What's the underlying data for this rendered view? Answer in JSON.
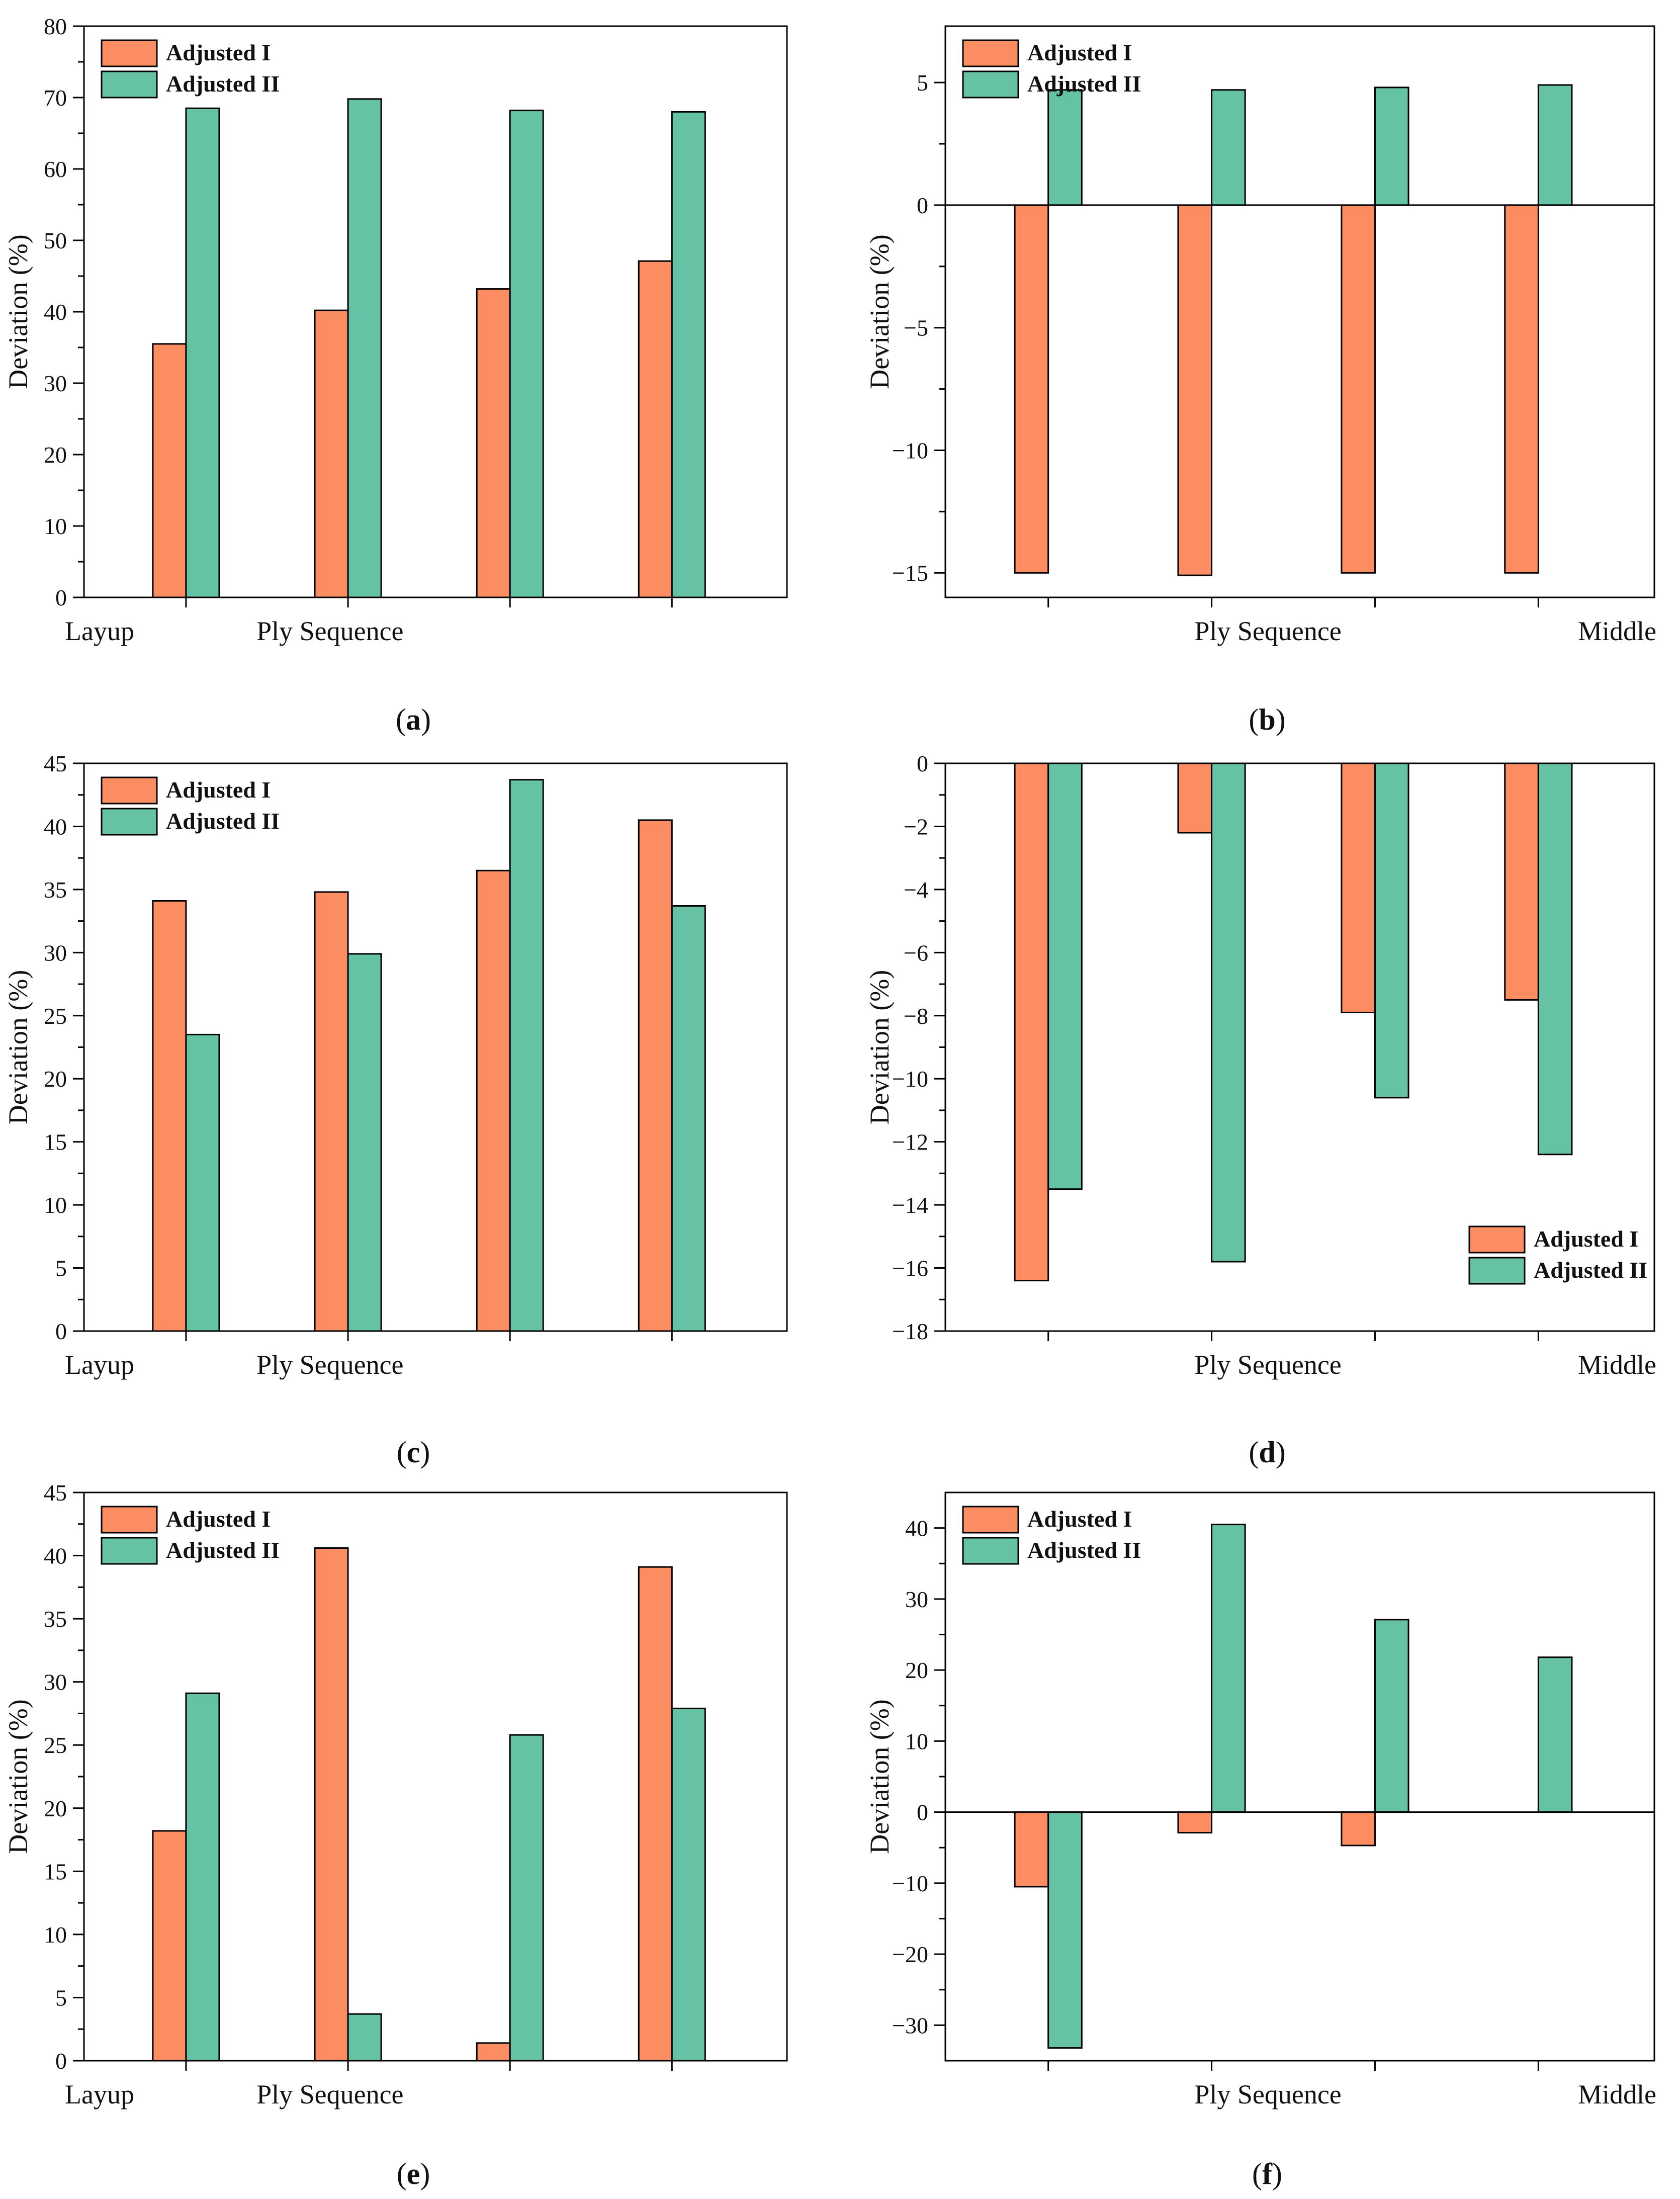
{
  "colors": {
    "adjusted_1": "#FC8D62",
    "adjusted_2": "#66C2A5",
    "axis": "#000000"
  },
  "legend": {
    "series_1": "Adjusted I",
    "series_2": "Adjusted II"
  },
  "chart_data": [
    {
      "id": "a",
      "type": "bar",
      "caption_letter": "a",
      "ylabel": "Deviation (%)",
      "xlabel": "Ply Sequence",
      "x_labels": {
        "left": "Layup",
        "right": ""
      },
      "ylim": [
        0,
        80
      ],
      "yticks": [
        0,
        10,
        20,
        30,
        40,
        50,
        60,
        70,
        80
      ],
      "legend_position": "top-left",
      "series": [
        {
          "name": "Adjusted I",
          "values": [
            35.5,
            40.2,
            43.2,
            47.1
          ]
        },
        {
          "name": "Adjusted II",
          "values": [
            68.5,
            69.8,
            68.2,
            68.0
          ]
        }
      ]
    },
    {
      "id": "b",
      "type": "bar",
      "caption_letter": "b",
      "ylabel": "Deviation (%)",
      "xlabel": "Ply Sequence",
      "x_labels": {
        "left": "",
        "right": "Middle"
      },
      "ylim": [
        -16,
        7.3
      ],
      "yticks": [
        -15,
        -10,
        -5,
        0,
        5
      ],
      "zero_line": true,
      "legend_position": "top-left",
      "series": [
        {
          "name": "Adjusted I",
          "values": [
            -15.0,
            -15.1,
            -15.0,
            -15.0
          ]
        },
        {
          "name": "Adjusted II",
          "values": [
            4.7,
            4.7,
            4.8,
            4.9
          ]
        }
      ]
    },
    {
      "id": "c",
      "type": "bar",
      "caption_letter": "c",
      "ylabel": "Deviation (%)",
      "xlabel": "Ply Sequence",
      "x_labels": {
        "left": "Layup",
        "right": ""
      },
      "ylim": [
        0,
        45
      ],
      "yticks": [
        0,
        5,
        10,
        15,
        20,
        25,
        30,
        35,
        40,
        45
      ],
      "legend_position": "top-left",
      "series": [
        {
          "name": "Adjusted I",
          "values": [
            34.1,
            34.8,
            36.5,
            40.5
          ]
        },
        {
          "name": "Adjusted II",
          "values": [
            23.5,
            29.9,
            43.7,
            33.7
          ]
        }
      ]
    },
    {
      "id": "d",
      "type": "bar",
      "caption_letter": "d",
      "ylabel": "Deviation (%)",
      "xlabel": "Ply Sequence",
      "x_labels": {
        "left": "",
        "right": "Middle"
      },
      "ylim": [
        -18,
        0
      ],
      "yticks": [
        -18,
        -16,
        -14,
        -12,
        -10,
        -8,
        -6,
        -4,
        -2,
        0
      ],
      "legend_position": "bottom-right",
      "series": [
        {
          "name": "Adjusted I",
          "values": [
            -16.4,
            -2.2,
            -7.9,
            -7.5
          ]
        },
        {
          "name": "Adjusted II",
          "values": [
            -13.5,
            -15.8,
            -10.6,
            -12.4
          ]
        }
      ]
    },
    {
      "id": "e",
      "type": "bar",
      "caption_letter": "e",
      "ylabel": "Deviation (%)",
      "xlabel": "Ply Sequence",
      "x_labels": {
        "left": "Layup",
        "right": ""
      },
      "ylim": [
        0,
        45
      ],
      "yticks": [
        0,
        5,
        10,
        15,
        20,
        25,
        30,
        35,
        40,
        45
      ],
      "legend_position": "top-left",
      "series": [
        {
          "name": "Adjusted I",
          "values": [
            18.2,
            40.6,
            1.4,
            39.1
          ]
        },
        {
          "name": "Adjusted II",
          "values": [
            29.1,
            3.7,
            25.8,
            27.9
          ]
        }
      ]
    },
    {
      "id": "f",
      "type": "bar",
      "caption_letter": "f",
      "ylabel": "Deviation (%)",
      "xlabel": "Ply Sequence",
      "x_labels": {
        "left": "",
        "right": "Middle"
      },
      "ylim": [
        -35,
        45
      ],
      "yticks": [
        -30,
        -20,
        -10,
        0,
        10,
        20,
        30,
        40
      ],
      "zero_line": true,
      "legend_position": "top-left",
      "series": [
        {
          "name": "Adjusted I",
          "values": [
            -10.5,
            -2.9,
            -4.7,
            0
          ]
        },
        {
          "name": "Adjusted II",
          "values": [
            -33.2,
            40.5,
            27.1,
            21.8
          ]
        }
      ]
    }
  ]
}
